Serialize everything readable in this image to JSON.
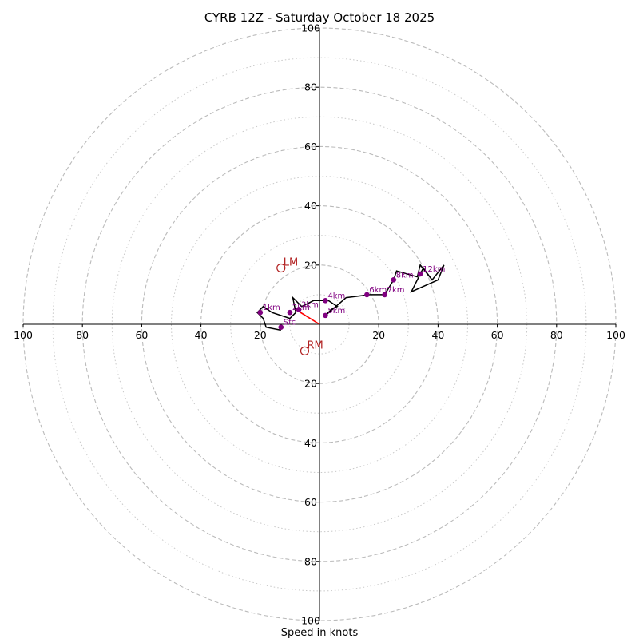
{
  "chart_data": {
    "type": "hodograph",
    "title": "CYRB 12Z - Saturday October 18 2025",
    "xlabel": "Speed in knots",
    "axis_range": [
      -100,
      100
    ],
    "ring_major": [
      20,
      40,
      60,
      80,
      100
    ],
    "ring_minor": [
      10,
      30,
      50,
      70,
      90
    ],
    "x_ticks": [
      {
        "value": -100,
        "label": "100"
      },
      {
        "value": -80,
        "label": "80"
      },
      {
        "value": -60,
        "label": "60"
      },
      {
        "value": -40,
        "label": "40"
      },
      {
        "value": -20,
        "label": "20"
      },
      {
        "value": 20,
        "label": "20"
      },
      {
        "value": 40,
        "label": "40"
      },
      {
        "value": 60,
        "label": "60"
      },
      {
        "value": 80,
        "label": "80"
      },
      {
        "value": 100,
        "label": "100"
      }
    ],
    "y_ticks": [
      {
        "value": 100,
        "label": "100"
      },
      {
        "value": 80,
        "label": "80"
      },
      {
        "value": 60,
        "label": "60"
      },
      {
        "value": 40,
        "label": "40"
      },
      {
        "value": 20,
        "label": "20"
      },
      {
        "value": -20,
        "label": "20"
      },
      {
        "value": -40,
        "label": "40"
      },
      {
        "value": -60,
        "label": "60"
      },
      {
        "value": -80,
        "label": "80"
      },
      {
        "value": -100,
        "label": "100"
      }
    ],
    "trace": [
      [
        -13,
        -2
      ],
      [
        -18,
        -1
      ],
      [
        -19,
        2
      ],
      [
        -21,
        4
      ],
      [
        -19,
        6
      ],
      [
        -16,
        4
      ],
      [
        -10,
        2
      ],
      [
        -8,
        4
      ],
      [
        -9,
        9
      ],
      [
        -6,
        6
      ],
      [
        -2,
        8
      ],
      [
        3,
        8
      ],
      [
        6,
        6
      ],
      [
        4,
        5
      ],
      [
        2,
        3
      ],
      [
        9,
        9
      ],
      [
        17,
        10
      ],
      [
        22,
        10
      ],
      [
        25,
        15
      ],
      [
        26,
        18
      ],
      [
        33,
        16
      ],
      [
        34,
        20
      ],
      [
        38,
        15
      ],
      [
        42,
        20
      ],
      [
        40,
        15
      ],
      [
        31,
        11
      ],
      [
        35,
        19
      ],
      [
        38,
        15
      ]
    ],
    "height_points": [
      {
        "u": -13,
        "v": -1,
        "label": "Sfc"
      },
      {
        "u": -20,
        "v": 4,
        "label": "1km"
      },
      {
        "u": -10,
        "v": 4,
        "label": "2km"
      },
      {
        "u": -7,
        "v": 5,
        "label": "3km"
      },
      {
        "u": 2,
        "v": 8,
        "label": "4km"
      },
      {
        "u": 2,
        "v": 3,
        "label": "5km"
      },
      {
        "u": 16,
        "v": 10,
        "label": "6km"
      },
      {
        "u": 22,
        "v": 10,
        "label": "7km"
      },
      {
        "u": 25,
        "v": 15,
        "label": "8km"
      },
      {
        "u": 34,
        "v": 17,
        "label": "12km"
      }
    ],
    "mean_wind_vector": {
      "u": -8,
      "v": 5,
      "color": "#ff0000"
    },
    "storm_motion": [
      {
        "label": "LM",
        "u": -13,
        "v": 19
      },
      {
        "label": "RM",
        "u": -5,
        "v": -9
      }
    ],
    "colors": {
      "trace": "#000000",
      "height_points": "#800080",
      "mean_wind": "#ff0000",
      "storm_motion": "#b22222",
      "rings": "#bbbbbb"
    }
  }
}
